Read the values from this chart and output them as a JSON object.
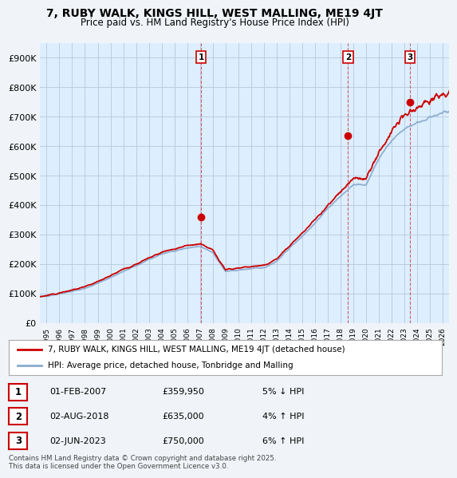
{
  "title": "7, RUBY WALK, KINGS HILL, WEST MALLING, ME19 4JT",
  "subtitle": "Price paid vs. HM Land Registry's House Price Index (HPI)",
  "ylim": [
    0,
    950000
  ],
  "yticks": [
    0,
    100000,
    200000,
    300000,
    400000,
    500000,
    600000,
    700000,
    800000,
    900000
  ],
  "ytick_labels": [
    "£0",
    "£100K",
    "£200K",
    "£300K",
    "£400K",
    "£500K",
    "£600K",
    "£700K",
    "£800K",
    "£900K"
  ],
  "background_color": "#f0f4f8",
  "plot_bg_color": "#ddeeff",
  "grid_color": "#b8cfe0",
  "sale_color": "#cc0000",
  "hpi_color": "#88aacc",
  "sale_label": "7, RUBY WALK, KINGS HILL, WEST MALLING, ME19 4JT (detached house)",
  "hpi_label": "HPI: Average price, detached house, Tonbridge and Malling",
  "transactions": [
    {
      "num": 1,
      "date": "01-FEB-2007",
      "price": "£359,950",
      "pct": "5%",
      "dir": "↓",
      "x_year": 2007.08
    },
    {
      "num": 2,
      "date": "02-AUG-2018",
      "price": "£635,000",
      "pct": "4%",
      "dir": "↑",
      "x_year": 2018.58
    },
    {
      "num": 3,
      "date": "02-JUN-2023",
      "price": "£750,000",
      "pct": "6%",
      "dir": "↑",
      "x_year": 2023.42
    }
  ],
  "transaction_values": [
    359950,
    635000,
    750000
  ],
  "footer": "Contains HM Land Registry data © Crown copyright and database right 2025.\nThis data is licensed under the Open Government Licence v3.0.",
  "xlim_start": 1994.5,
  "xlim_end": 2026.5
}
